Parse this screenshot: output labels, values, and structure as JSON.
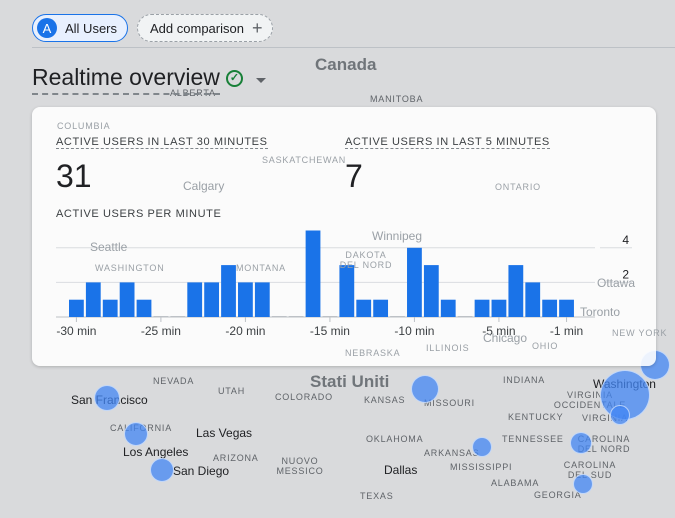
{
  "filters": {
    "segment_avatar": "A",
    "segment_label": "All Users",
    "add_comparison": "Add comparison",
    "add_icon": "+"
  },
  "header": {
    "title": "Realtime overview",
    "status_icon": "check-circle",
    "status_color": "#188038"
  },
  "metrics": [
    {
      "label": "ACTIVE USERS IN LAST 30 MINUTES",
      "value": "31"
    },
    {
      "label": "ACTIVE USERS IN LAST 5 MINUTES",
      "value": "7"
    }
  ],
  "chart_data": {
    "type": "bar",
    "title": "ACTIVE USERS PER MINUTE",
    "values": [
      1,
      2,
      1,
      2,
      1,
      0,
      0,
      2,
      2,
      3,
      2,
      2,
      0,
      0,
      5,
      0,
      3,
      1,
      1,
      0,
      4,
      3,
      1,
      0,
      1,
      1,
      3,
      2,
      1,
      1
    ],
    "x_tick_labels": [
      "-30 min",
      "-25 min",
      "-20 min",
      "-15 min",
      "-10 min",
      "-5 min",
      "-1 min"
    ],
    "x_tick_minutes": [
      -30,
      -25,
      -20,
      -15,
      -10,
      -5,
      -1
    ],
    "y_tick_labels": [
      "4",
      "2"
    ],
    "y_ticks": [
      4,
      2
    ],
    "ylim": [
      0,
      5.2
    ],
    "grid": true,
    "color": "#1a73e8"
  },
  "map": {
    "countries": [
      "Canada",
      "Stati Uniti"
    ],
    "regions": [
      "ALBERTA",
      "MANITOBA",
      "COLUMBIA",
      "SASKATCHEWAN",
      "ONTARIO",
      "DAKOTA DEL NORD",
      "WASHINGTON",
      "MONTANA",
      "NEBRASKA",
      "NEVADA",
      "UTAH",
      "COLORADO",
      "KANSAS",
      "MISSOURI",
      "INDIANA",
      "CALIFORNIA",
      "ARIZONA",
      "NUOVO MESSICO",
      "OKLAHOMA",
      "ARKANSAS",
      "TENNESSEE",
      "KENTUCKY",
      "VIRGINIA OCCIDENTALE",
      "CAROLINA DEL NORD",
      "CAROLINA DEL SUD",
      "MISSISSIPPI",
      "ALABAMA",
      "GEORGIA",
      "TEXAS",
      "NEW YORK",
      "VIRGINIA",
      "ILLINOIS",
      "OHIO"
    ],
    "cities": [
      "Calgary",
      "Winnipeg",
      "Seattle",
      "Ottawa",
      "Toronto",
      "Chicago",
      "San Francisco",
      "Las Vegas",
      "Los Angeles",
      "San Diego",
      "Dallas",
      "Washington"
    ]
  }
}
